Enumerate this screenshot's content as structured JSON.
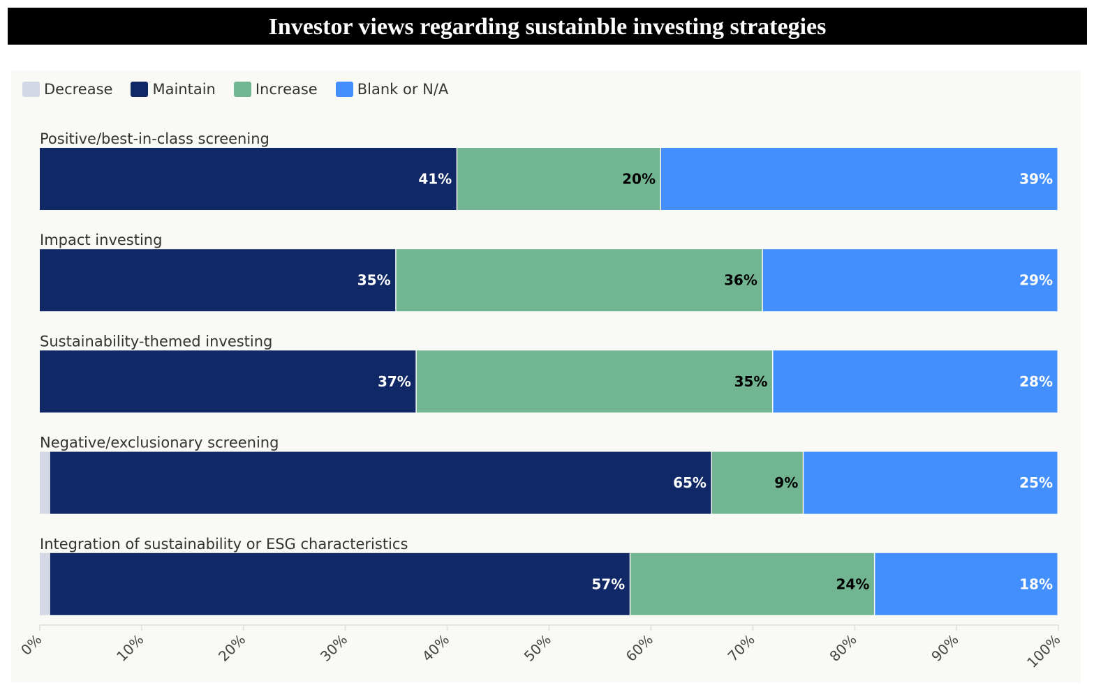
{
  "chart_data": {
    "type": "bar",
    "orientation": "horizontal-stacked",
    "title": "Investor views regarding sustainble investing strategies",
    "categories": [
      "Positive/best-in-class screening",
      "Impact investing",
      "Sustainability-themed investing",
      "Negative/exclusionary screening",
      "Integration of sustainability or ESG characteristics"
    ],
    "series": [
      {
        "name": "Decrease",
        "color": "#d3d8e4",
        "label_color": "#000000",
        "values": [
          0,
          0,
          0,
          1,
          1
        ]
      },
      {
        "name": "Maintain",
        "color": "#112866",
        "label_color": "#ffffff",
        "values": [
          41,
          35,
          37,
          65,
          57
        ]
      },
      {
        "name": "Increase",
        "color": "#72b592",
        "label_color": "#000000",
        "values": [
          20,
          36,
          35,
          9,
          24
        ]
      },
      {
        "name": "Blank or N/A",
        "color": "#428ffd",
        "label_color": "#ffffff",
        "values": [
          39,
          29,
          28,
          25,
          18
        ]
      }
    ],
    "xlim": [
      0,
      100
    ],
    "xticks": [
      "0%",
      "10%",
      "20%",
      "30%",
      "40%",
      "50%",
      "60%",
      "70%",
      "80%",
      "90%",
      "100%"
    ],
    "legend": "top-left",
    "grid": false
  }
}
